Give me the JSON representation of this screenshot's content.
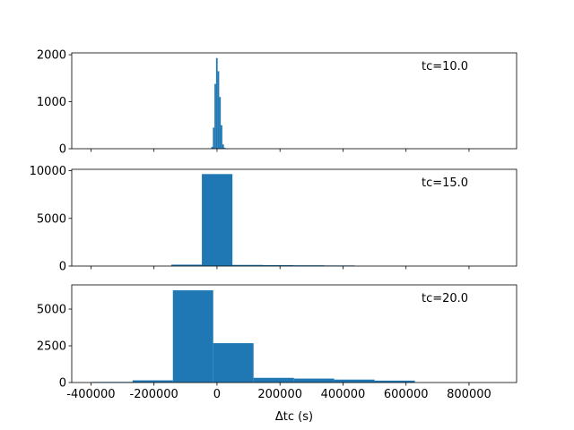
{
  "chart_data": [
    {
      "type": "histogram",
      "annotation": "tc=10.0",
      "color": "#1f77b4",
      "bins": [
        -18000,
        -13000,
        -8000,
        -3000,
        2000,
        7000,
        12000,
        17000,
        22000,
        27000
      ],
      "counts": [
        40,
        450,
        1380,
        1930,
        1650,
        1100,
        500,
        90,
        20
      ],
      "xlim": [
        -461000,
        951000
      ],
      "xticks": [
        -400000,
        -200000,
        0,
        200000,
        400000,
        600000,
        800000
      ],
      "ylim": [
        0,
        2040
      ],
      "yticks": [
        0,
        1000,
        2000
      ]
    },
    {
      "type": "histogram",
      "annotation": "tc=15.0",
      "color": "#1f77b4",
      "bins": [
        -145000,
        -48000,
        49000,
        146000,
        243000,
        340000,
        437000
      ],
      "counts": [
        150,
        9650,
        120,
        100,
        80,
        60
      ],
      "xlim": [
        -461000,
        951000
      ],
      "xticks": [
        -400000,
        -200000,
        0,
        200000,
        400000,
        600000,
        800000
      ],
      "ylim": [
        0,
        10150
      ],
      "yticks": [
        0,
        5000,
        10000
      ]
    },
    {
      "type": "histogram",
      "annotation": "tc=20.0",
      "color": "#1f77b4",
      "xlabel": "Δtc (s)",
      "bins": [
        -396000,
        -268000,
        -140000,
        -12000,
        116000,
        244000,
        372000,
        500000,
        628000
      ],
      "counts": [
        40,
        150,
        6280,
        2680,
        320,
        270,
        200,
        130
      ],
      "xlim": [
        -461000,
        951000
      ],
      "xticks": [
        -400000,
        -200000,
        0,
        200000,
        400000,
        600000,
        800000
      ],
      "ylim": [
        0,
        6650
      ],
      "yticks": [
        0,
        2500,
        5000
      ]
    }
  ]
}
